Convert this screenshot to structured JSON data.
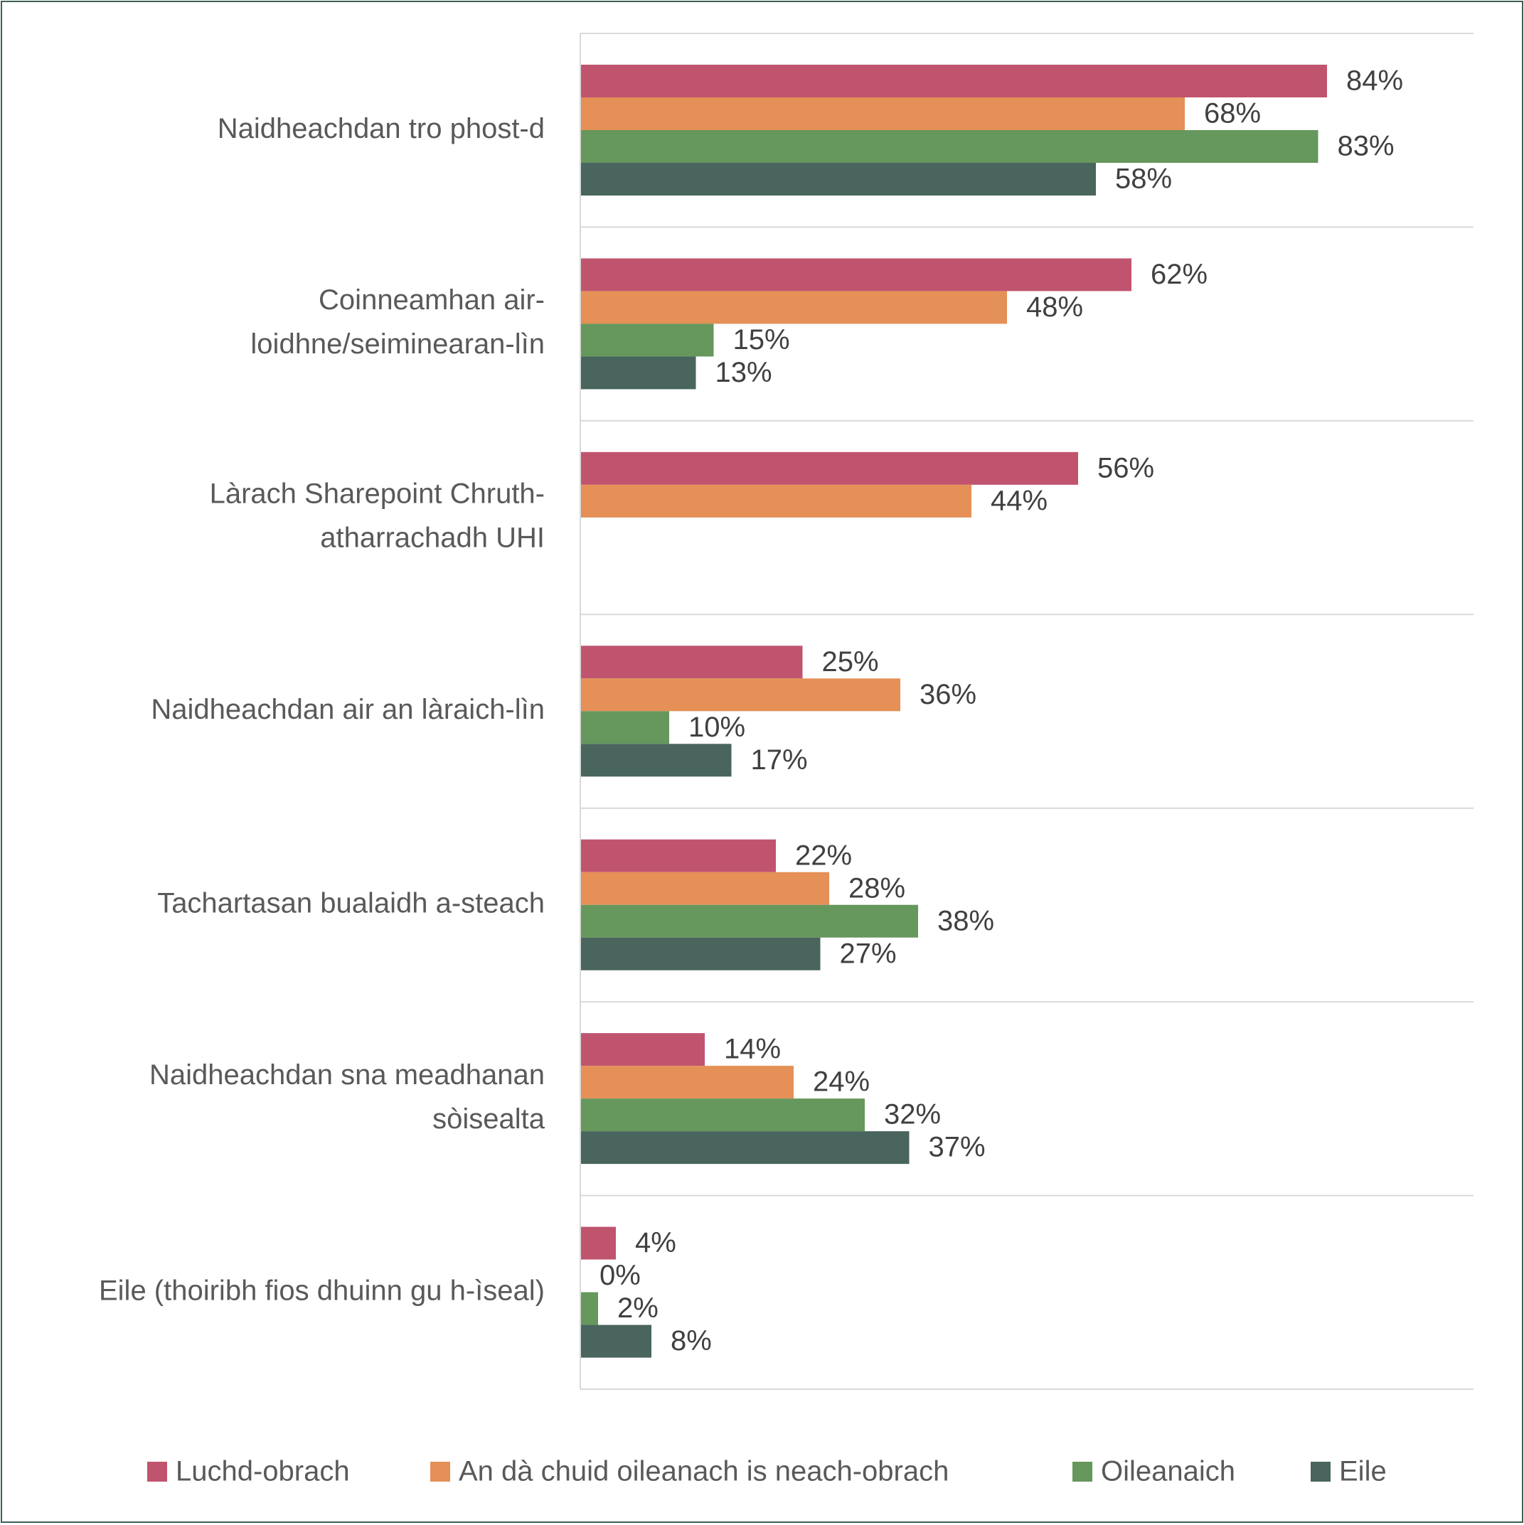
{
  "chart_data": {
    "type": "bar",
    "orientation": "horizontal",
    "title": "",
    "xlabel": "",
    "ylabel": "",
    "xlim": [
      0,
      100
    ],
    "grid": "horizontal separators between categories",
    "legend_position": "bottom",
    "categories": [
      [
        "Naidheachdan tro phost-d"
      ],
      [
        "Coinneamhan air-",
        "loidhne/seiminearan-lìn"
      ],
      [
        "Làrach Sharepoint Chruth-",
        "atharrachadh UHI"
      ],
      [
        "Naidheachdan air an làraich-lìn"
      ],
      [
        "Tachartasan bualaidh a-steach"
      ],
      [
        "Naidheachdan sna meadhanan",
        "sòisealta"
      ],
      [
        "Eile (thoiribh fios dhuinn gu h-ìseal)"
      ]
    ],
    "series": [
      {
        "name": "Luchd-obrach",
        "color": "#c0546f",
        "values": [
          84,
          62,
          56,
          25,
          22,
          14,
          4
        ],
        "labels": [
          "84%",
          "62%",
          "56%",
          "25%",
          "22%",
          "14%",
          "4%"
        ]
      },
      {
        "name": "An dà chuid oileanach is neach-obrach",
        "color": "#e49057",
        "values": [
          68,
          48,
          44,
          36,
          28,
          24,
          0
        ],
        "labels": [
          "68%",
          "48%",
          "44%",
          "36%",
          "28%",
          "24%",
          "0%"
        ]
      },
      {
        "name": "Oileanaich",
        "color": "#66975c",
        "values": [
          83,
          15,
          null,
          10,
          38,
          32,
          2
        ],
        "labels": [
          "83%",
          "15%",
          null,
          "10%",
          "38%",
          "32%",
          "2%"
        ]
      },
      {
        "name": "Eile",
        "color": "#49655d",
        "values": [
          58,
          13,
          null,
          17,
          27,
          37,
          8
        ],
        "labels": [
          "58%",
          "13%",
          null,
          "17%",
          "27%",
          "37%",
          "8%"
        ]
      }
    ]
  }
}
